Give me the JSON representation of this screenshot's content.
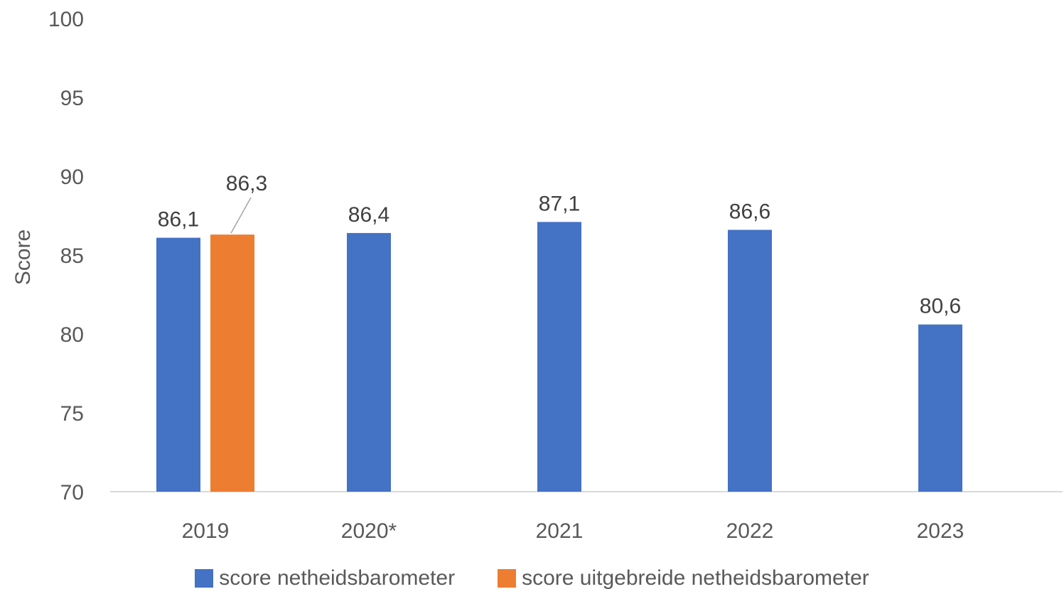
{
  "chart_data": {
    "type": "bar",
    "categories": [
      "2019",
      "2020*",
      "2021",
      "2022",
      "2023"
    ],
    "series": [
      {
        "name": "score netheidsbarometer",
        "color": "#4472C4",
        "values": [
          86.1,
          86.4,
          87.1,
          86.6,
          80.6
        ],
        "labels": [
          "86,1",
          "86,4",
          "87,1",
          "86,6",
          "80,6"
        ]
      },
      {
        "name": "score uitgebreide netheidsbarometer",
        "color": "#ED7D31",
        "values": [
          86.3,
          null,
          null,
          null,
          null
        ],
        "labels": [
          "86,3",
          "",
          "",
          "",
          ""
        ]
      }
    ],
    "ylabel": "Score",
    "xlabel": "",
    "ylim": [
      70,
      100
    ],
    "yticks": [
      "70",
      "75",
      "80",
      "85",
      "90",
      "95",
      "100"
    ],
    "grid": false,
    "legend": "bottom"
  }
}
